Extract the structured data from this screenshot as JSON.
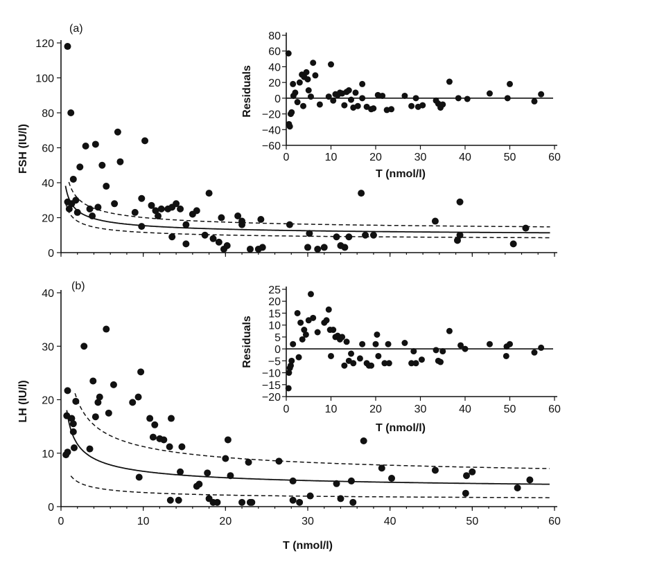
{
  "chart_data": [
    {
      "type": "scatter",
      "panel_label": "(a)",
      "xlabel": "",
      "ylabel": "FSH (IU/l)",
      "xlim": [
        0,
        60
      ],
      "ylim": [
        0,
        120
      ],
      "y_ticks": [
        "0",
        "20",
        "40",
        "60",
        "80",
        "100",
        "120"
      ],
      "fit": {
        "a": 8.5,
        "b": 22,
        "ci_upper_factor": 1.3,
        "ci_lower_factor": 0.75
      },
      "points": [
        [
          0.8,
          118
        ],
        [
          1.2,
          80
        ],
        [
          0.8,
          29
        ],
        [
          1.0,
          25
        ],
        [
          1.3,
          28
        ],
        [
          1.5,
          42
        ],
        [
          1.8,
          30
        ],
        [
          2.0,
          23
        ],
        [
          2.3,
          49
        ],
        [
          3.0,
          61
        ],
        [
          3.8,
          21
        ],
        [
          3.5,
          25
        ],
        [
          4.2,
          62
        ],
        [
          4.5,
          26
        ],
        [
          5.0,
          50
        ],
        [
          5.5,
          38
        ],
        [
          6.5,
          28
        ],
        [
          6.9,
          69
        ],
        [
          7.2,
          52
        ],
        [
          9.0,
          23
        ],
        [
          9.8,
          15
        ],
        [
          9.8,
          31
        ],
        [
          10.2,
          64
        ],
        [
          11.0,
          27
        ],
        [
          11.5,
          24
        ],
        [
          11.8,
          21
        ],
        [
          12.2,
          25
        ],
        [
          13.0,
          25
        ],
        [
          13.5,
          26
        ],
        [
          13.5,
          9
        ],
        [
          14.0,
          28
        ],
        [
          14.5,
          25
        ],
        [
          15.2,
          16
        ],
        [
          15.2,
          5
        ],
        [
          16.0,
          22
        ],
        [
          16.5,
          24
        ],
        [
          17.5,
          10
        ],
        [
          18.0,
          34
        ],
        [
          18.5,
          8
        ],
        [
          19.2,
          6
        ],
        [
          19.8,
          2
        ],
        [
          20.2,
          4
        ],
        [
          19.5,
          20
        ],
        [
          21.5,
          21
        ],
        [
          22.0,
          16
        ],
        [
          22.0,
          18
        ],
        [
          23.0,
          2
        ],
        [
          24.0,
          2
        ],
        [
          24.5,
          3
        ],
        [
          24.3,
          19
        ],
        [
          27.8,
          16
        ],
        [
          30.0,
          3
        ],
        [
          30.2,
          11
        ],
        [
          31.2,
          2
        ],
        [
          32.0,
          3
        ],
        [
          33.5,
          9
        ],
        [
          34.0,
          4
        ],
        [
          34.5,
          3
        ],
        [
          35.0,
          9
        ],
        [
          36.5,
          34
        ],
        [
          37.0,
          10
        ],
        [
          38.0,
          10
        ],
        [
          45.5,
          18
        ],
        [
          48.5,
          29
        ],
        [
          48.5,
          10
        ],
        [
          48.2,
          7
        ],
        [
          55.0,
          5
        ],
        [
          56.5,
          14
        ]
      ],
      "inset": {
        "xlabel": "T (nmol/l)",
        "ylabel": "Residuals",
        "xlim": [
          0,
          60
        ],
        "ylim": [
          -60,
          80
        ],
        "x_ticks": [
          "0",
          "10",
          "20",
          "30",
          "40",
          "50",
          "60"
        ],
        "y_ticks": [
          "−60",
          "−40",
          "−20",
          "0",
          "20",
          "40",
          "60",
          "80"
        ],
        "points": [
          [
            0.5,
            57
          ],
          [
            0.6,
            -33
          ],
          [
            0.8,
            -36
          ],
          [
            1.0,
            -20
          ],
          [
            1.2,
            -18
          ],
          [
            1.5,
            18
          ],
          [
            1.6,
            3
          ],
          [
            2.0,
            7
          ],
          [
            2.5,
            -5
          ],
          [
            3.0,
            20
          ],
          [
            3.5,
            30
          ],
          [
            3.8,
            -10
          ],
          [
            4.0,
            27
          ],
          [
            4.5,
            33
          ],
          [
            4.8,
            24
          ],
          [
            5.0,
            10
          ],
          [
            5.5,
            2
          ],
          [
            6.0,
            45
          ],
          [
            6.5,
            29
          ],
          [
            7.5,
            -8
          ],
          [
            9.5,
            2
          ],
          [
            10.0,
            43
          ],
          [
            10.5,
            -3
          ],
          [
            11.0,
            5
          ],
          [
            11.5,
            4
          ],
          [
            12.0,
            7
          ],
          [
            12.5,
            6
          ],
          [
            13.0,
            -9
          ],
          [
            13.5,
            8
          ],
          [
            14.0,
            10
          ],
          [
            14.5,
            -2
          ],
          [
            15.0,
            -12
          ],
          [
            15.5,
            7
          ],
          [
            16.0,
            -10
          ],
          [
            17.0,
            18
          ],
          [
            17.0,
            0
          ],
          [
            18.0,
            -11
          ],
          [
            19.0,
            -14
          ],
          [
            19.5,
            -13
          ],
          [
            20.5,
            4
          ],
          [
            21.5,
            3
          ],
          [
            22.5,
            -15
          ],
          [
            23.5,
            -14
          ],
          [
            26.5,
            3
          ],
          [
            28.0,
            -10
          ],
          [
            29.0,
            0
          ],
          [
            29.5,
            -11
          ],
          [
            30.5,
            -9
          ],
          [
            33.5,
            -3
          ],
          [
            34.0,
            -7
          ],
          [
            34.5,
            -12
          ],
          [
            35.0,
            -8
          ],
          [
            36.5,
            21
          ],
          [
            38.5,
            0
          ],
          [
            40.5,
            -1
          ],
          [
            45.5,
            6
          ],
          [
            49.5,
            0
          ],
          [
            50.0,
            18
          ],
          [
            55.5,
            -4
          ],
          [
            57.0,
            5
          ]
        ]
      }
    },
    {
      "type": "scatter",
      "panel_label": "(b)",
      "xlabel": "T (nmol/l)",
      "ylabel": "LH (IU/l)",
      "xlim": [
        0,
        60
      ],
      "ylim": [
        0,
        40
      ],
      "x_ticks": [
        "0",
        "10",
        "20",
        "30",
        "40",
        "50",
        "60"
      ],
      "y_ticks": [
        "0",
        "10",
        "20",
        "30",
        "40"
      ],
      "fit": {
        "a": 2.5,
        "b": 13,
        "ci_upper_factor": 1.7,
        "ci_lower_factor": 0.4
      },
      "points": [
        [
          0.6,
          9.7
        ],
        [
          0.8,
          10.2
        ],
        [
          0.7,
          17
        ],
        [
          0.8,
          21.7
        ],
        [
          1.3,
          16.5
        ],
        [
          1.5,
          14
        ],
        [
          1.5,
          15.5
        ],
        [
          1.6,
          11
        ],
        [
          1.8,
          19.7
        ],
        [
          2.8,
          30
        ],
        [
          3.5,
          10.8
        ],
        [
          3.9,
          23.5
        ],
        [
          4.2,
          16.8
        ],
        [
          4.5,
          19.5
        ],
        [
          4.7,
          20.5
        ],
        [
          5.5,
          33.2
        ],
        [
          5.8,
          17.5
        ],
        [
          6.4,
          22.8
        ],
        [
          8.7,
          19.5
        ],
        [
          9.4,
          20.5
        ],
        [
          9.5,
          5.5
        ],
        [
          9.7,
          25.2
        ],
        [
          10.8,
          16.5
        ],
        [
          11.2,
          13
        ],
        [
          11.4,
          15.3
        ],
        [
          12.0,
          12.7
        ],
        [
          12.5,
          12.5
        ],
        [
          13.2,
          11.2
        ],
        [
          13.3,
          1.2
        ],
        [
          13.4,
          16.5
        ],
        [
          14.3,
          1.2
        ],
        [
          14.5,
          6.5
        ],
        [
          14.7,
          11.2
        ],
        [
          16.5,
          3.8
        ],
        [
          16.8,
          4.2
        ],
        [
          17.8,
          6.3
        ],
        [
          18.0,
          1.5
        ],
        [
          18.5,
          0.8
        ],
        [
          19.0,
          0.8
        ],
        [
          20.0,
          9
        ],
        [
          20.3,
          12.5
        ],
        [
          20.6,
          5.8
        ],
        [
          22.0,
          0.8
        ],
        [
          22.8,
          8.3
        ],
        [
          23.0,
          0.8
        ],
        [
          23.2,
          0.8
        ],
        [
          26.5,
          8.5
        ],
        [
          28.2,
          4.8
        ],
        [
          28.2,
          1.2
        ],
        [
          29.0,
          0.8
        ],
        [
          30.3,
          2
        ],
        [
          33.5,
          4.3
        ],
        [
          34.0,
          1.5
        ],
        [
          35.3,
          4.8
        ],
        [
          35.5,
          0.8
        ],
        [
          36.8,
          12.3
        ],
        [
          39.0,
          7.2
        ],
        [
          40.2,
          5.3
        ],
        [
          45.5,
          6.8
        ],
        [
          49.3,
          5.8
        ],
        [
          49.2,
          2.5
        ],
        [
          50.0,
          6.5
        ],
        [
          55.5,
          3.5
        ],
        [
          57.0,
          5
        ]
      ],
      "inset": {
        "xlabel": "T (nmol/l)",
        "ylabel": "Residuals",
        "xlim": [
          0,
          60
        ],
        "ylim": [
          -20,
          25
        ],
        "x_ticks": [
          "0",
          "10",
          "20",
          "30",
          "40",
          "50",
          "60"
        ],
        "y_ticks": [
          "−20",
          "−15",
          "−10",
          "−5",
          "0",
          "5",
          "10",
          "15",
          "20",
          "25"
        ],
        "points": [
          [
            0.5,
            -16.5
          ],
          [
            0.6,
            -10
          ],
          [
            0.8,
            -8
          ],
          [
            1.0,
            -7
          ],
          [
            1.2,
            -5
          ],
          [
            1.5,
            2
          ],
          [
            2.5,
            15
          ],
          [
            2.8,
            -3.5
          ],
          [
            3.2,
            11
          ],
          [
            3.6,
            4
          ],
          [
            4.0,
            8
          ],
          [
            4.4,
            6
          ],
          [
            5.0,
            12
          ],
          [
            5.5,
            23
          ],
          [
            6.0,
            13
          ],
          [
            7.0,
            7
          ],
          [
            8.5,
            11
          ],
          [
            9.0,
            12
          ],
          [
            9.5,
            16.5
          ],
          [
            9.8,
            8
          ],
          [
            10.0,
            -3
          ],
          [
            10.5,
            8
          ],
          [
            11.0,
            5
          ],
          [
            11.5,
            5.5
          ],
          [
            12.0,
            4
          ],
          [
            12.5,
            5
          ],
          [
            13.0,
            -7
          ],
          [
            13.5,
            3
          ],
          [
            14.0,
            -5
          ],
          [
            14.5,
            -2
          ],
          [
            15.0,
            -6
          ],
          [
            16.5,
            -4
          ],
          [
            17.0,
            2
          ],
          [
            18.0,
            -6
          ],
          [
            18.5,
            -7
          ],
          [
            19.0,
            -7
          ],
          [
            20.0,
            2
          ],
          [
            20.3,
            6
          ],
          [
            20.6,
            -3
          ],
          [
            22.0,
            -6
          ],
          [
            22.8,
            2
          ],
          [
            23.0,
            -6
          ],
          [
            26.5,
            2.5
          ],
          [
            28.0,
            -6
          ],
          [
            28.5,
            -1
          ],
          [
            29.0,
            -6
          ],
          [
            30.3,
            -4.5
          ],
          [
            33.5,
            -0.5
          ],
          [
            34.0,
            -5
          ],
          [
            34.5,
            -5.5
          ],
          [
            35.0,
            -1
          ],
          [
            36.5,
            7.5
          ],
          [
            39.0,
            1.5
          ],
          [
            40.0,
            0
          ],
          [
            45.5,
            2
          ],
          [
            49.3,
            1
          ],
          [
            49.2,
            -3
          ],
          [
            50.0,
            2
          ],
          [
            55.5,
            -1.5
          ],
          [
            57.0,
            0.5
          ]
        ]
      }
    }
  ]
}
